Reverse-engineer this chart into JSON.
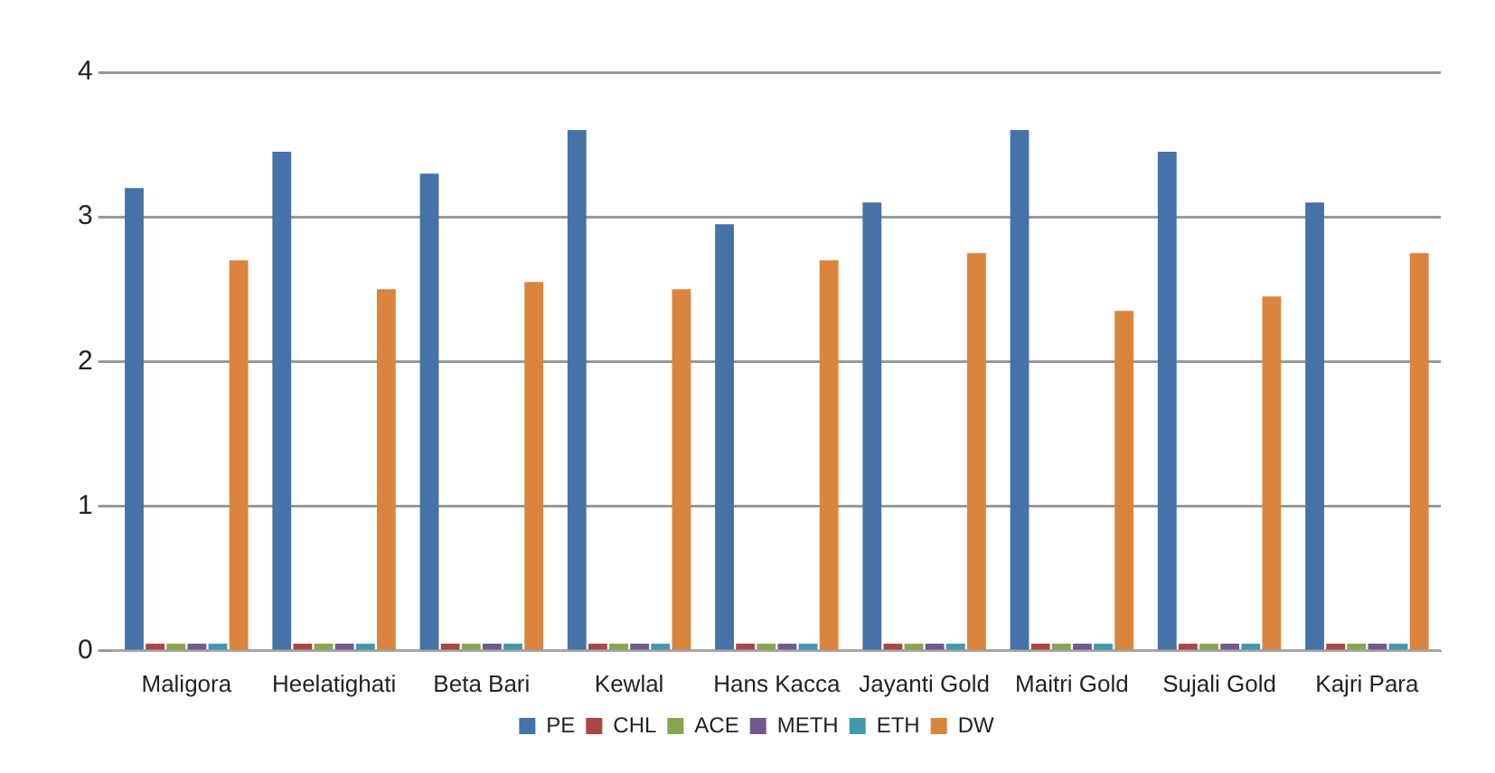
{
  "chart_data": {
    "type": "bar",
    "categories": [
      "Maligora",
      "Heelatighati",
      "Beta Bari",
      "Kewlal",
      "Hans Kacca",
      "Jayanti Gold",
      "Maitri Gold",
      "Sujali Gold",
      "Kajri Para"
    ],
    "series": [
      {
        "name": "PE",
        "color": "#4572a7",
        "values": [
          3.2,
          3.45,
          3.3,
          3.6,
          2.95,
          3.1,
          3.6,
          3.45,
          3.1
        ]
      },
      {
        "name": "CHL",
        "color": "#aa4643",
        "values": [
          0.05,
          0.05,
          0.05,
          0.05,
          0.05,
          0.05,
          0.05,
          0.05,
          0.05
        ]
      },
      {
        "name": "ACE",
        "color": "#89a54e",
        "values": [
          0.05,
          0.05,
          0.05,
          0.05,
          0.05,
          0.05,
          0.05,
          0.05,
          0.05
        ]
      },
      {
        "name": "METH",
        "color": "#71588f",
        "values": [
          0.05,
          0.05,
          0.05,
          0.05,
          0.05,
          0.05,
          0.05,
          0.05,
          0.05
        ]
      },
      {
        "name": "ETH",
        "color": "#4198af",
        "values": [
          0.05,
          0.05,
          0.05,
          0.05,
          0.05,
          0.05,
          0.05,
          0.05,
          0.05
        ]
      },
      {
        "name": "DW",
        "color": "#db843d",
        "values": [
          2.7,
          2.5,
          2.55,
          2.5,
          2.7,
          2.75,
          2.35,
          2.45,
          2.75
        ]
      }
    ],
    "ylim": [
      0,
      4
    ],
    "yticks": [
      0,
      1,
      2,
      3,
      4
    ],
    "grid": "y",
    "legend": "bottom"
  }
}
